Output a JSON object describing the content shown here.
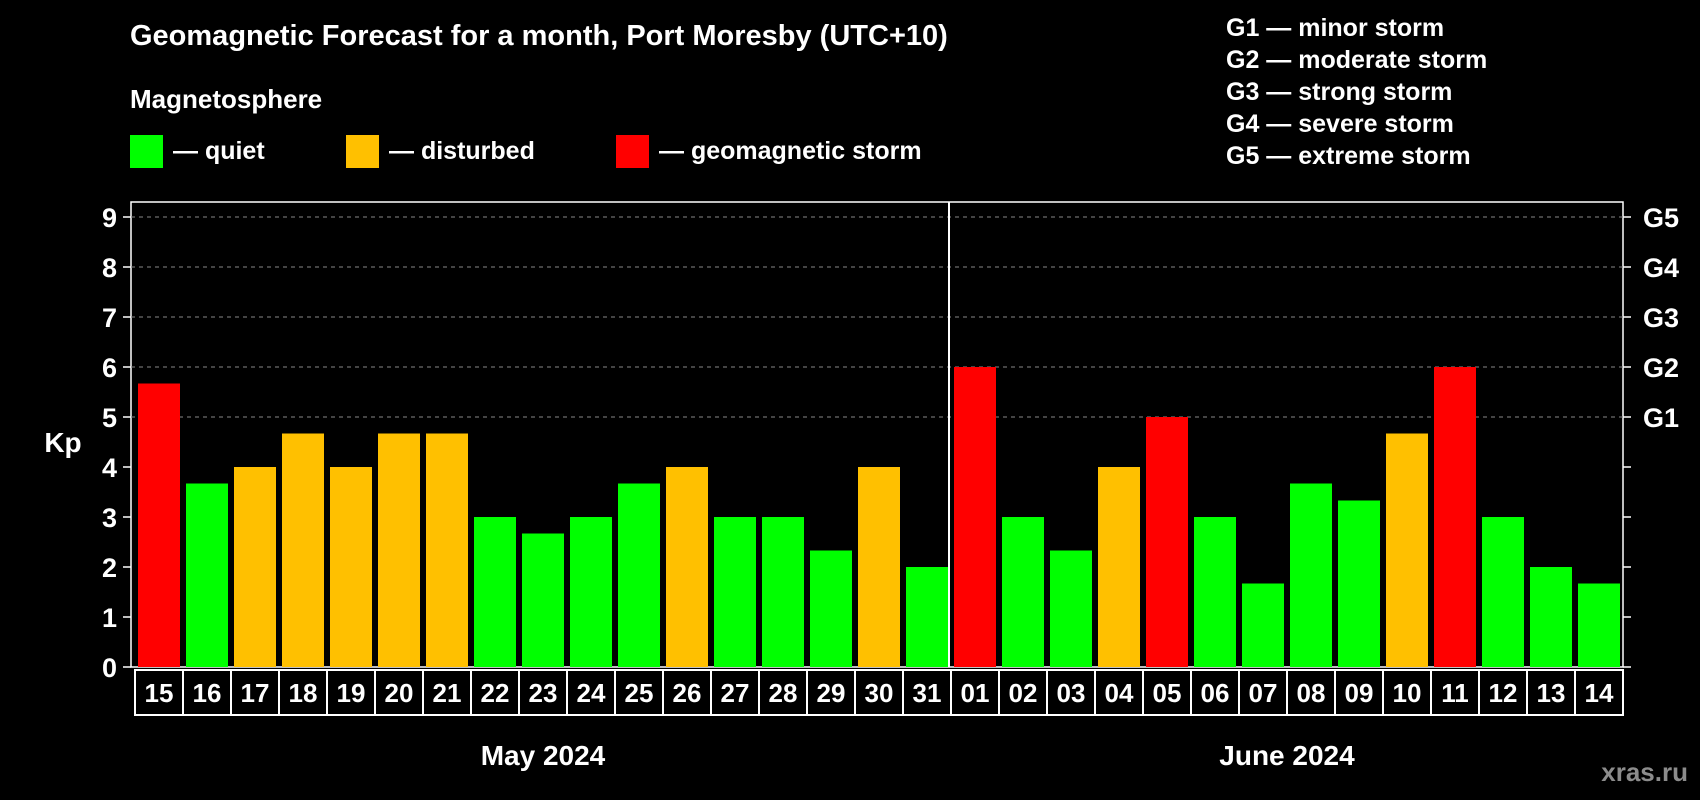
{
  "title": "Geomagnetic Forecast for a month, Port Moresby (UTC+10)",
  "magnetosphere_heading": "Magnetosphere",
  "legend": [
    {
      "label": "— quiet",
      "color": "#00ff00"
    },
    {
      "label": "— disturbed",
      "color": "#ffc000"
    },
    {
      "label": "— geomagnetic storm",
      "color": "#ff0000"
    }
  ],
  "storm_scale": [
    "G1 — minor storm",
    "G2 — moderate storm",
    "G3 — strong storm",
    "G4 — severe storm",
    "G5 — extreme storm"
  ],
  "watermark": "xras.ru",
  "chart_data": {
    "type": "bar",
    "ylabel": "Kp",
    "ylim": [
      0,
      9
    ],
    "yticks": [
      "0",
      "1",
      "2",
      "3",
      "4",
      "5",
      "6",
      "7",
      "8",
      "9"
    ],
    "right_axis_labels": [
      {
        "kp": 5,
        "label": "G1"
      },
      {
        "kp": 6,
        "label": "G2"
      },
      {
        "kp": 7,
        "label": "G3"
      },
      {
        "kp": 8,
        "label": "G4"
      },
      {
        "kp": 9,
        "label": "G5"
      }
    ],
    "grid": "dashed horizontal at Kp 5-9",
    "months": [
      {
        "label": "May 2024",
        "start_index": 0,
        "end_index": 16
      },
      {
        "label": "June 2024",
        "start_index": 17,
        "end_index": 30
      }
    ],
    "categories": [
      "15",
      "16",
      "17",
      "18",
      "19",
      "20",
      "21",
      "22",
      "23",
      "24",
      "25",
      "26",
      "27",
      "28",
      "29",
      "30",
      "31",
      "01",
      "02",
      "03",
      "04",
      "05",
      "06",
      "07",
      "08",
      "09",
      "10",
      "11",
      "12",
      "13",
      "14"
    ],
    "values": [
      5.67,
      3.67,
      4,
      4.67,
      4,
      4.67,
      4.67,
      3,
      2.67,
      3,
      3.67,
      4,
      3,
      3,
      2.33,
      4,
      2,
      6,
      3,
      2.33,
      4,
      5,
      3,
      1.67,
      3.67,
      3.33,
      4.67,
      6,
      3,
      2,
      1.67
    ],
    "levels": [
      "storm",
      "quiet",
      "disturbed",
      "disturbed",
      "disturbed",
      "disturbed",
      "disturbed",
      "quiet",
      "quiet",
      "quiet",
      "quiet",
      "disturbed",
      "quiet",
      "quiet",
      "quiet",
      "disturbed",
      "quiet",
      "storm",
      "quiet",
      "quiet",
      "disturbed",
      "storm",
      "quiet",
      "quiet",
      "quiet",
      "quiet",
      "disturbed",
      "storm",
      "quiet",
      "quiet",
      "quiet"
    ],
    "level_colors": {
      "quiet": "#00ff00",
      "disturbed": "#ffc000",
      "storm": "#ff0000"
    }
  }
}
